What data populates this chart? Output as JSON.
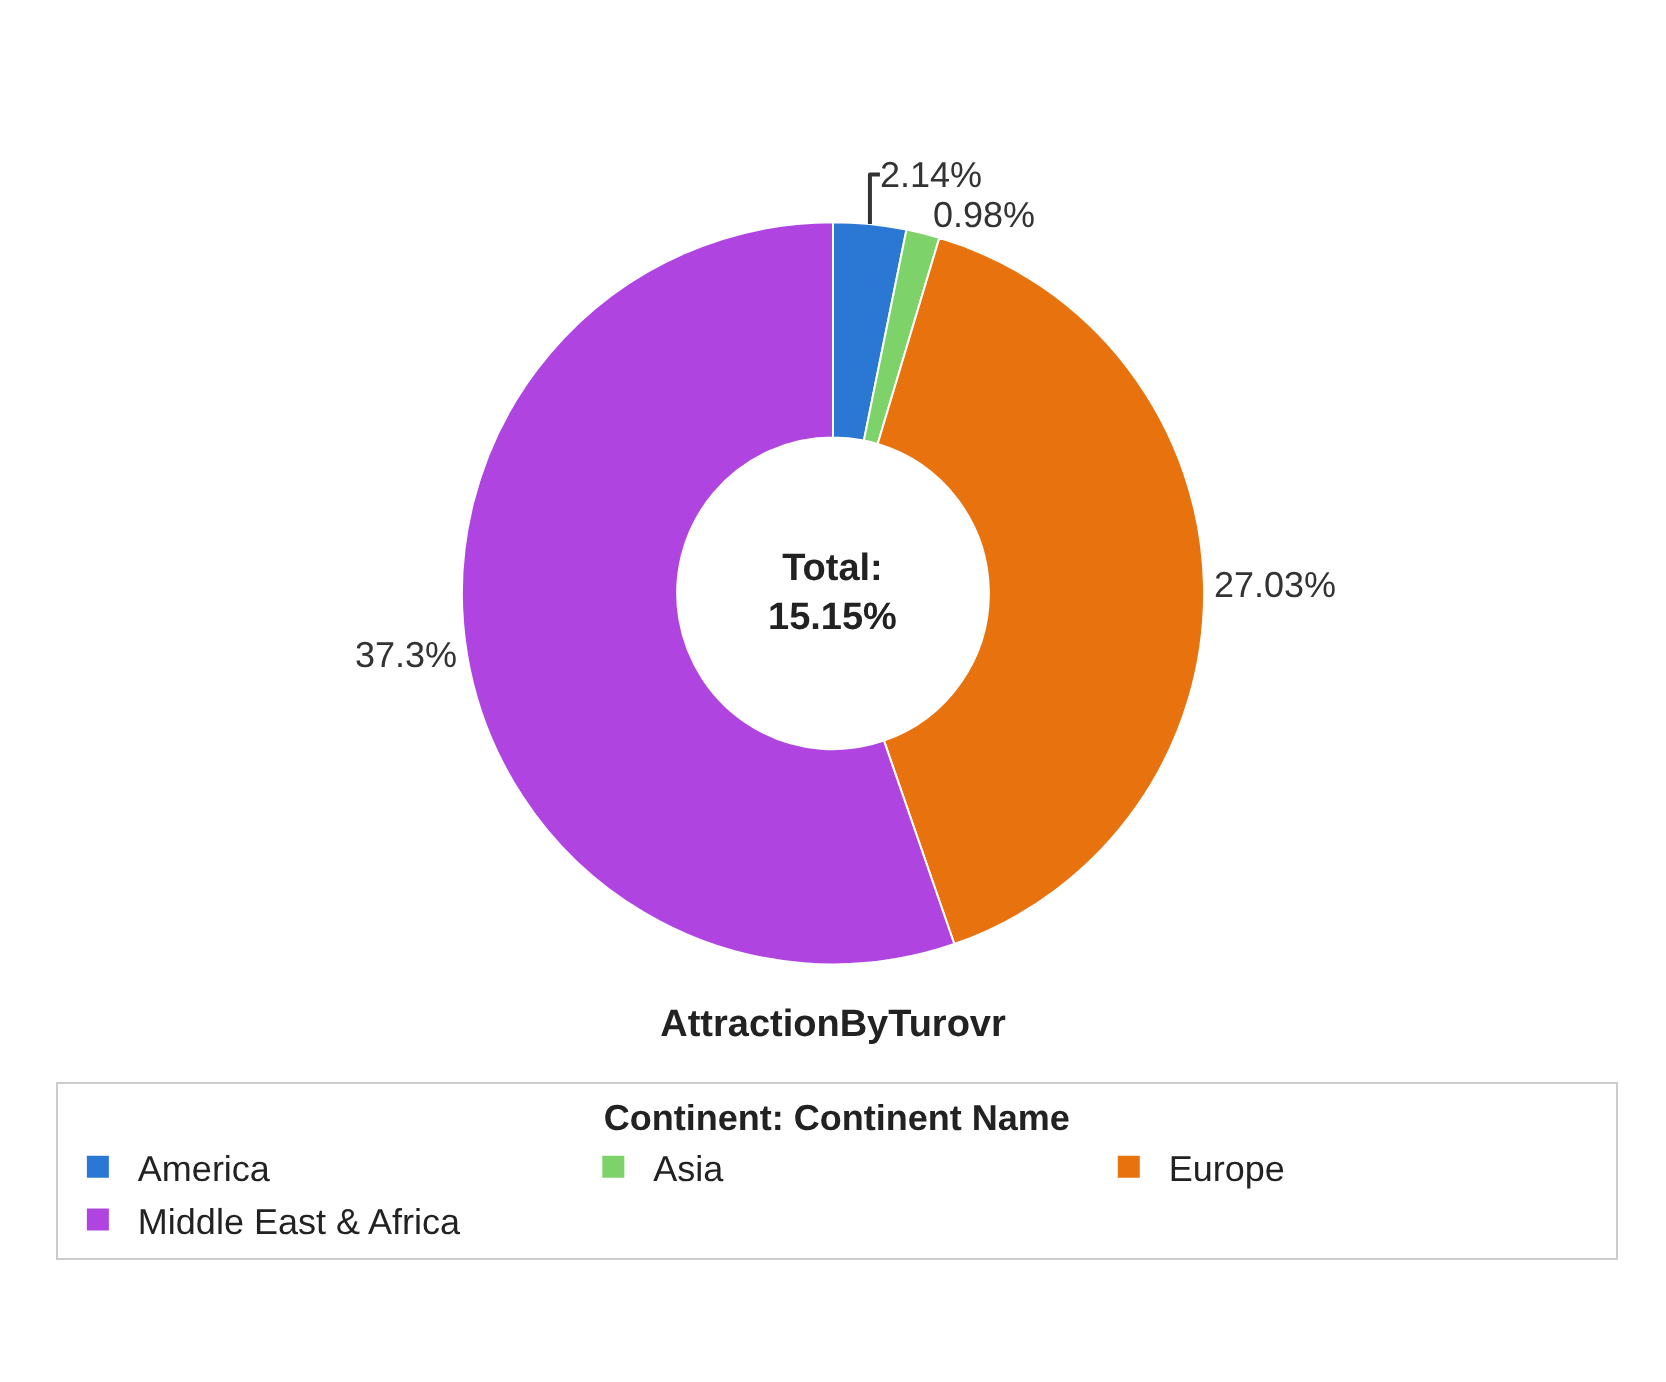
{
  "chart_data": {
    "type": "donut",
    "title": "AttractionByTurovr",
    "legend_title": "Continent: Continent Name",
    "categories": [
      "America",
      "Asia",
      "Europe",
      "Middle East & Africa"
    ],
    "values": [
      2.14,
      0.98,
      27.03,
      37.3
    ],
    "colors": [
      "#2b78d4",
      "#7dd36a",
      "#e8730e",
      "#b044e0"
    ],
    "value_labels": [
      "2.14%",
      "0.98%",
      "27.03%",
      "37.3%"
    ],
    "annotations": [
      "Total:\n15.15%"
    ],
    "legend": "bottom"
  }
}
